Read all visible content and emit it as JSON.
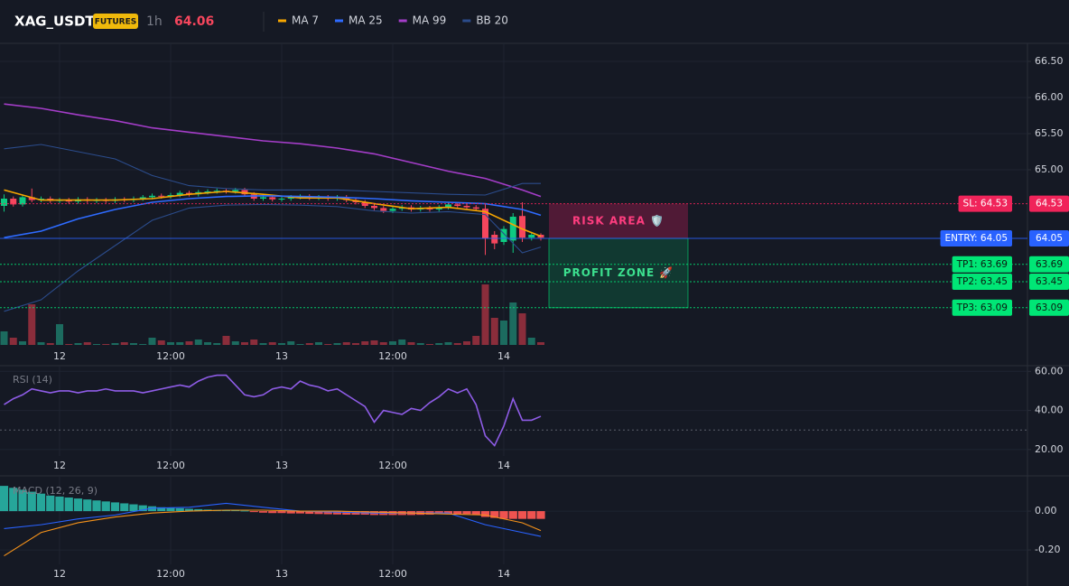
{
  "header": {
    "symbol": "XAG_USDT",
    "badge": "FUTURES",
    "interval": "1h",
    "price": "64.06"
  },
  "chart_data": [
    {
      "type": "candlestick",
      "categories": [
        null,
        null,
        null,
        null,
        null,
        null,
        "12",
        null,
        null,
        null,
        null,
        null,
        null,
        null,
        null,
        null,
        null,
        null,
        "12:00",
        null,
        null,
        null,
        null,
        null,
        null,
        null,
        null,
        null,
        null,
        null,
        "13",
        null,
        null,
        null,
        null,
        null,
        null,
        null,
        null,
        null,
        null,
        null,
        "12:00",
        null,
        null,
        null,
        null,
        null,
        null,
        null,
        null,
        null,
        null,
        null,
        "14",
        null,
        null,
        null,
        null
      ],
      "open": [
        64.5,
        64.6,
        64.52,
        64.62,
        64.58,
        64.6,
        64.57,
        64.58,
        64.56,
        64.59,
        64.57,
        64.58,
        64.57,
        64.59,
        64.58,
        64.6,
        64.62,
        64.64,
        64.63,
        64.65,
        64.68,
        64.66,
        64.69,
        64.7,
        64.71,
        64.7,
        64.72,
        64.66,
        64.6,
        64.62,
        64.59,
        64.6,
        64.62,
        64.63,
        64.61,
        64.62,
        64.6,
        64.62,
        64.58,
        64.55,
        64.5,
        64.47,
        64.43,
        64.46,
        64.48,
        64.45,
        64.47,
        64.45,
        64.48,
        64.52,
        64.5,
        64.48,
        64.46,
        64.1,
        64.0,
        64.02,
        64.36,
        64.06,
        64.1
      ],
      "high": [
        64.66,
        64.63,
        64.65,
        64.74,
        64.63,
        64.63,
        64.61,
        64.61,
        64.62,
        64.62,
        64.61,
        64.61,
        64.62,
        64.62,
        64.63,
        64.65,
        64.67,
        64.67,
        64.68,
        64.71,
        64.71,
        64.72,
        64.73,
        64.74,
        64.74,
        64.75,
        64.75,
        64.69,
        64.65,
        64.65,
        64.63,
        64.65,
        64.66,
        64.66,
        64.65,
        64.65,
        64.65,
        64.65,
        64.61,
        64.58,
        64.53,
        64.5,
        64.49,
        64.51,
        64.51,
        64.5,
        64.5,
        64.51,
        64.55,
        64.55,
        64.53,
        64.51,
        64.52,
        64.15,
        64.22,
        64.4,
        64.55,
        64.14,
        64.12
      ],
      "low": [
        64.42,
        64.49,
        64.49,
        64.55,
        64.55,
        64.54,
        64.54,
        64.53,
        64.53,
        64.54,
        64.54,
        64.54,
        64.54,
        64.55,
        64.55,
        64.57,
        64.59,
        64.6,
        64.6,
        64.62,
        64.63,
        64.63,
        64.66,
        64.67,
        64.67,
        64.67,
        64.63,
        64.57,
        64.57,
        64.56,
        64.56,
        64.57,
        64.59,
        64.58,
        64.58,
        64.57,
        64.57,
        64.55,
        64.52,
        64.47,
        64.44,
        64.4,
        64.4,
        64.43,
        64.42,
        64.42,
        64.42,
        64.42,
        64.45,
        64.47,
        64.45,
        64.43,
        63.82,
        63.9,
        63.96,
        63.85,
        64.0,
        64.02,
        64.02
      ],
      "close": [
        64.6,
        64.52,
        64.62,
        64.58,
        64.6,
        64.57,
        64.58,
        64.56,
        64.59,
        64.57,
        64.58,
        64.57,
        64.59,
        64.58,
        64.6,
        64.62,
        64.64,
        64.63,
        64.65,
        64.68,
        64.66,
        64.69,
        64.7,
        64.71,
        64.7,
        64.72,
        64.66,
        64.6,
        64.62,
        64.59,
        64.6,
        64.62,
        64.63,
        64.61,
        64.62,
        64.6,
        64.62,
        64.58,
        64.55,
        64.5,
        64.47,
        64.43,
        64.46,
        64.48,
        64.45,
        64.47,
        64.45,
        64.48,
        64.52,
        64.5,
        64.48,
        64.46,
        64.05,
        63.98,
        64.18,
        64.35,
        64.06,
        64.1,
        64.06
      ],
      "volume": [
        15,
        8,
        4,
        45,
        3,
        2,
        23,
        1,
        2,
        3,
        1,
        1,
        2,
        3,
        2,
        1,
        8,
        5,
        3,
        3,
        4,
        6,
        3,
        2,
        10,
        4,
        3,
        6,
        2,
        3,
        2,
        4,
        1,
        2,
        3,
        1,
        2,
        3,
        2,
        4,
        5,
        3,
        4,
        6,
        3,
        2,
        1,
        2,
        3,
        2,
        4,
        10,
        67,
        30,
        27,
        47,
        35,
        8,
        3
      ],
      "volume_ylim": [
        0,
        100
      ],
      "up_color": "#0ecb81",
      "down_color": "#f6465d",
      "volume_up_color": "#1c6b5f",
      "volume_down_color": "#8a2d3b",
      "ylim": [
        62.575,
        66.75
      ],
      "yticks": [
        {
          "value": 66.5,
          "label": "66.50"
        },
        {
          "value": 66,
          "label": "66.00"
        },
        {
          "value": 65.5,
          "label": "65.50"
        },
        {
          "value": 65,
          "label": "65.00"
        }
      ],
      "grid": true,
      "series": [
        {
          "name": "MA 7",
          "color": "#f7a600",
          "x": [
            0,
            4,
            8,
            12,
            16,
            20,
            24,
            28,
            32,
            36,
            40,
            44,
            48,
            52,
            56,
            58
          ],
          "values": [
            64.72,
            64.58,
            64.58,
            64.58,
            64.6,
            64.66,
            64.7,
            64.66,
            64.61,
            64.61,
            64.53,
            64.46,
            64.48,
            64.42,
            64.18,
            64.08
          ]
        },
        {
          "name": "MA 25",
          "color": "#2e6bff",
          "x": [
            0,
            4,
            8,
            12,
            16,
            20,
            24,
            28,
            32,
            36,
            40,
            44,
            48,
            52,
            56,
            58
          ],
          "values": [
            64.06,
            64.15,
            64.32,
            64.45,
            64.55,
            64.6,
            64.63,
            64.64,
            64.63,
            64.62,
            64.6,
            64.57,
            64.55,
            64.53,
            64.45,
            64.37
          ]
        },
        {
          "name": "MA 99",
          "color": "#a43dc8",
          "x": [
            0,
            4,
            8,
            12,
            16,
            20,
            24,
            28,
            32,
            36,
            40,
            44,
            48,
            52,
            56,
            58
          ],
          "values": [
            65.91,
            65.85,
            65.76,
            65.68,
            65.58,
            65.52,
            65.46,
            65.4,
            65.36,
            65.3,
            65.22,
            65.1,
            64.98,
            64.88,
            64.72,
            64.63
          ]
        },
        {
          "name": "BB 20",
          "color": "#2b4c8c",
          "x": [
            0,
            4,
            8,
            12,
            16,
            20,
            24,
            28,
            32,
            36,
            40,
            44,
            48,
            52,
            56,
            58
          ],
          "values": [
            65.29,
            65.35,
            65.25,
            65.15,
            64.92,
            64.78,
            64.74,
            64.72,
            64.72,
            64.72,
            64.7,
            64.68,
            64.66,
            64.65,
            64.81,
            64.81
          ],
          "lower": [
            63.04,
            63.2,
            63.6,
            63.95,
            64.3,
            64.47,
            64.51,
            64.52,
            64.51,
            64.49,
            64.43,
            64.4,
            64.42,
            64.38,
            63.85,
            63.93
          ]
        }
      ],
      "levels": [
        {
          "value": 64.53,
          "label": "SL: 64.53",
          "axis_label": "64.53",
          "color": "#f0245a",
          "text_color": "#ffffff",
          "style": "dotted"
        },
        {
          "value": 64.05,
          "label": "ENTRY: 64.05",
          "axis_label": "64.05",
          "color": "#2962ff",
          "text_color": "#ffffff",
          "style": "solid"
        },
        {
          "value": 63.69,
          "label": "TP1: 63.69",
          "axis_label": "63.69",
          "color": "#00e676",
          "text_color": "#0b1a10",
          "style": "dotted"
        },
        {
          "value": 63.45,
          "label": "TP2: 63.45",
          "axis_label": "63.45",
          "color": "#00e676",
          "text_color": "#0b1a10",
          "style": "dotted"
        },
        {
          "value": 63.09,
          "label": "TP3: 63.09",
          "axis_label": "63.09",
          "color": "#00e676",
          "text_color": "#0b1a10",
          "style": "dotted"
        }
      ],
      "zones": [
        "RISK AREA 🛡️",
        "PROFIT ZONE 🚀"
      ]
    },
    {
      "type": "line",
      "title": "RSI (14)",
      "categories": [
        null,
        null,
        null,
        null,
        null,
        null,
        "12",
        null,
        null,
        null,
        null,
        null,
        null,
        null,
        null,
        null,
        null,
        null,
        "12:00",
        null,
        null,
        null,
        null,
        null,
        null,
        null,
        null,
        null,
        null,
        null,
        "13",
        null,
        null,
        null,
        null,
        null,
        null,
        null,
        null,
        null,
        null,
        null,
        "12:00",
        null,
        null,
        null,
        null,
        null,
        null,
        null,
        null,
        null,
        null,
        null,
        "14",
        null,
        null,
        null,
        null
      ],
      "values": [
        43,
        46,
        48,
        51,
        50,
        49,
        50,
        50,
        49,
        50,
        50,
        51,
        50,
        50,
        50,
        49,
        50,
        51,
        52,
        53,
        52,
        55,
        57,
        58,
        58,
        53,
        48,
        47,
        48,
        51,
        52,
        51,
        55,
        53,
        52,
        50,
        51,
        48,
        45,
        42,
        34,
        40,
        39,
        38,
        41,
        40,
        44,
        47,
        51,
        49,
        51,
        43,
        27,
        22,
        32,
        46,
        35,
        35,
        37
      ],
      "color": "#8e5ce6",
      "ylim": [
        16.7,
        62.9
      ],
      "yticks": [
        {
          "value": 60,
          "label": "60.00"
        },
        {
          "value": 40,
          "label": "40.00"
        },
        {
          "value": 20,
          "label": "20.00"
        }
      ],
      "reference_lines": [
        30
      ],
      "grid": true
    },
    {
      "type": "bar",
      "title": "MACD (12, 26, 9)",
      "categories": [
        null,
        null,
        null,
        null,
        null,
        null,
        "12",
        null,
        null,
        null,
        null,
        null,
        null,
        null,
        null,
        null,
        null,
        null,
        "12:00",
        null,
        null,
        null,
        null,
        null,
        null,
        null,
        null,
        null,
        null,
        null,
        "13",
        null,
        null,
        null,
        null,
        null,
        null,
        null,
        null,
        null,
        null,
        null,
        "12:00",
        null,
        null,
        null,
        null,
        null,
        null,
        null,
        null,
        null,
        null,
        null,
        "14",
        null,
        null,
        null,
        null
      ],
      "values": [
        0.13,
        0.12,
        0.11,
        0.1,
        0.09,
        0.08,
        0.075,
        0.07,
        0.065,
        0.06,
        0.055,
        0.05,
        0.045,
        0.04,
        0.035,
        0.03,
        0.025,
        0.02,
        0.018,
        0.015,
        0.012,
        0.01,
        0.008,
        0.006,
        0.005,
        0.004,
        0.002,
        -0.005,
        -0.008,
        -0.01,
        -0.01,
        -0.012,
        -0.012,
        -0.014,
        -0.015,
        -0.016,
        -0.017,
        -0.018,
        -0.018,
        -0.018,
        -0.02,
        -0.02,
        -0.02,
        -0.02,
        -0.02,
        -0.019,
        -0.018,
        -0.016,
        -0.015,
        -0.014,
        -0.015,
        -0.02,
        -0.03,
        -0.035,
        -0.04,
        -0.04,
        -0.04,
        -0.04,
        -0.04
      ],
      "up_color": "#26a69a",
      "down_color": "#ef5350",
      "ylim": [
        -0.274,
        0.177
      ],
      "yticks": [
        {
          "value": 0,
          "label": "0.00"
        },
        {
          "value": -0.2,
          "label": "-0.20"
        }
      ],
      "grid": true,
      "series": [
        {
          "color": "#2962ff",
          "x": [
            0,
            4,
            8,
            12,
            16,
            20,
            24,
            28,
            32,
            36,
            40,
            44,
            48,
            52,
            56,
            58
          ],
          "values": [
            -0.09,
            -0.07,
            -0.04,
            -0.02,
            0.015,
            0.02,
            0.04,
            0.02,
            0.0,
            -0.005,
            -0.01,
            -0.01,
            -0.01,
            -0.07,
            -0.11,
            -0.13
          ]
        },
        {
          "color": "#f7931a",
          "x": [
            0,
            4,
            8,
            12,
            16,
            20,
            24,
            28,
            32,
            36,
            40,
            44,
            48,
            52,
            56,
            58
          ],
          "values": [
            -0.23,
            -0.11,
            -0.06,
            -0.03,
            -0.01,
            0.0,
            0.005,
            0.005,
            0.0,
            0.0,
            -0.005,
            -0.01,
            -0.015,
            -0.02,
            -0.06,
            -0.1
          ]
        }
      ]
    }
  ]
}
